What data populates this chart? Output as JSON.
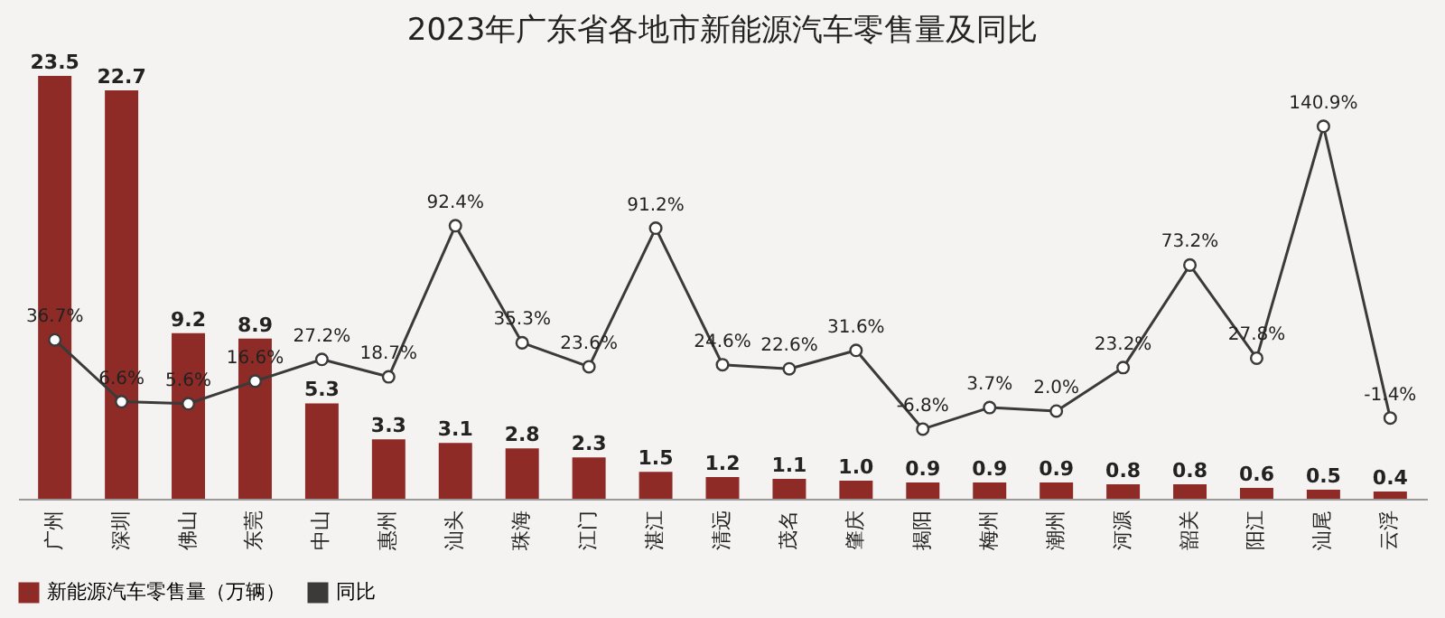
{
  "chart_data": {
    "type": "bar",
    "title": "2023年广东省各地市新能源汽车零售量及同比",
    "categories": [
      "广州",
      "深圳",
      "佛山",
      "东莞",
      "中山",
      "惠州",
      "汕头",
      "珠海",
      "江门",
      "湛江",
      "清远",
      "茂名",
      "肇庆",
      "揭阳",
      "梅州",
      "潮州",
      "河源",
      "韶关",
      "阳江",
      "汕尾",
      "云浮"
    ],
    "series": [
      {
        "name": "新能源汽车零售量（万辆）",
        "color": "#8e2b27",
        "values": [
          23.5,
          22.7,
          9.2,
          8.9,
          5.3,
          3.3,
          3.1,
          2.8,
          2.3,
          1.5,
          1.2,
          1.1,
          1.0,
          0.9,
          0.9,
          0.9,
          0.8,
          0.8,
          0.6,
          0.5,
          0.4
        ],
        "value_labels": [
          "23.5",
          "22.7",
          "9.2",
          "8.9",
          "5.3",
          "3.3",
          "3.1",
          "2.8",
          "2.3",
          "1.5",
          "1.2",
          "1.1",
          "1.0",
          "0.9",
          "0.9",
          "0.9",
          "0.8",
          "0.8",
          "0.6",
          "0.5",
          "0.4"
        ]
      },
      {
        "name": "同比",
        "type": "line",
        "axis": "y2",
        "color": "#3a3a3a",
        "values": [
          36.7,
          6.6,
          5.6,
          16.6,
          27.2,
          18.7,
          92.4,
          35.3,
          23.6,
          91.2,
          24.6,
          22.6,
          31.6,
          -6.8,
          3.7,
          2.0,
          23.2,
          73.2,
          27.8,
          140.9,
          -1.4
        ],
        "value_labels": [
          "36.7%",
          "6.6%",
          "5.6%",
          "16.6%",
          "27.2%",
          "18.7%",
          "92.4%",
          "35.3%",
          "23.6%",
          "91.2%",
          "24.6%",
          "22.6%",
          "31.6%",
          "-6.8%",
          "3.7%",
          "2.0%",
          "23.2%",
          "73.2%",
          "27.8%",
          "140.9%",
          "-1.4%"
        ]
      }
    ],
    "marker": "circle",
    "legend": "bottom",
    "grid": false,
    "tick_labels": "x"
  }
}
